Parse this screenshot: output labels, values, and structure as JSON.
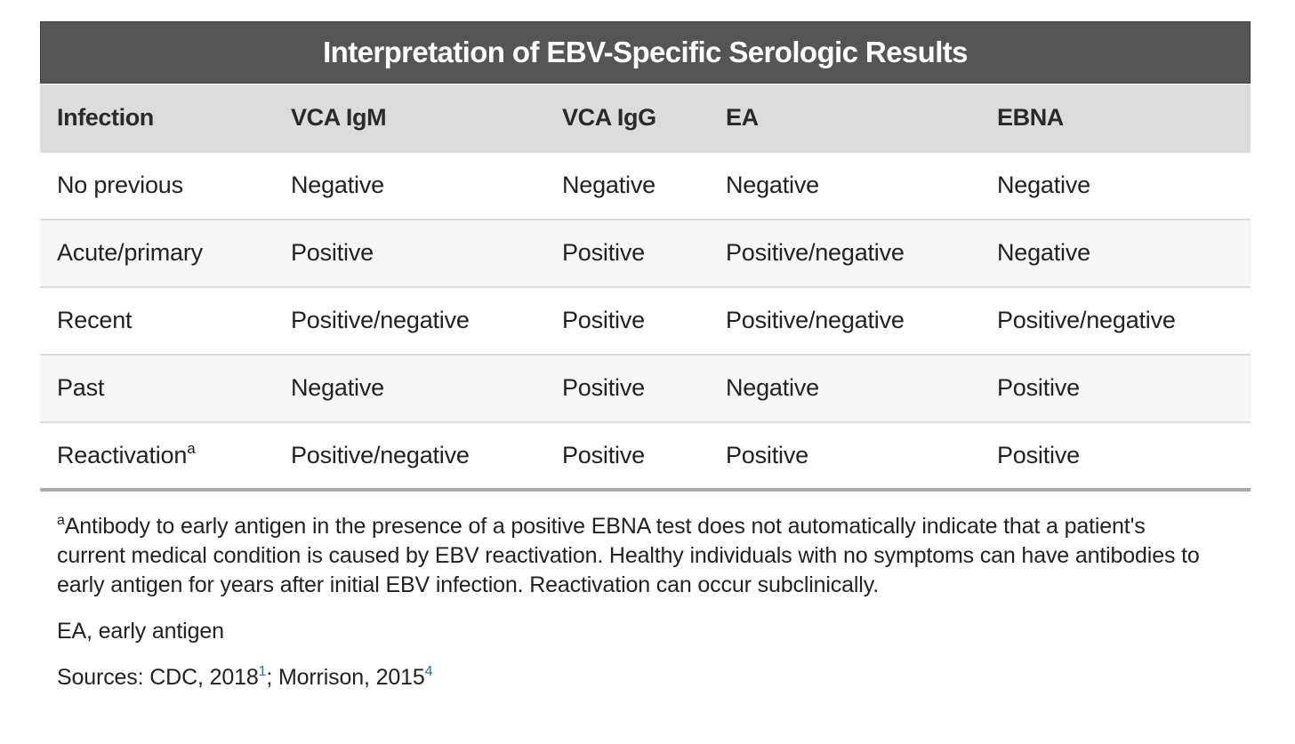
{
  "table": {
    "title": "Interpretation of EBV-Specific Serologic Results",
    "columns": [
      "Infection",
      "VCA IgM",
      "VCA IgG",
      "EA",
      "EBNA"
    ],
    "rows": [
      {
        "infection": "No previous",
        "infection_sup": "",
        "vca_igm": "Negative",
        "vca_igg": "Negative",
        "ea": "Negative",
        "ebna": "Negative"
      },
      {
        "infection": "Acute/primary",
        "infection_sup": "",
        "vca_igm": "Positive",
        "vca_igg": "Positive",
        "ea": "Positive/negative",
        "ebna": "Negative"
      },
      {
        "infection": "Recent",
        "infection_sup": "",
        "vca_igm": "Positive/negative",
        "vca_igg": "Positive",
        "ea": "Positive/negative",
        "ebna": "Positive/negative"
      },
      {
        "infection": "Past",
        "infection_sup": "",
        "vca_igm": "Negative",
        "vca_igg": "Positive",
        "ea": "Negative",
        "ebna": "Positive"
      },
      {
        "infection": "Reactivation",
        "infection_sup": "a",
        "vca_igm": "Positive/negative",
        "vca_igg": "Positive",
        "ea": "Positive",
        "ebna": "Positive"
      }
    ]
  },
  "footnotes": {
    "note_a_marker": "a",
    "note_a_text": "Antibody to early antigen in the presence of a positive EBNA test does not automatically indicate that a patient's current medical condition is caused by EBV reactivation. Healthy individuals with no symptoms can have antibodies to early antigen for years after initial EBV infection. Reactivation can occur subclinically.",
    "abbreviation": "EA, early antigen",
    "sources": {
      "prefix": "Sources: ",
      "source1_text": "CDC, 2018",
      "source1_ref": "1",
      "separator": "; ",
      "source2_text": "Morrison, 2015",
      "source2_ref": "4"
    }
  },
  "colors": {
    "title_bg": "#555555",
    "header_bg": "#dcdcdc",
    "row_alt_bg": "#f7f7f7",
    "ref_link": "#1b7aa0"
  }
}
